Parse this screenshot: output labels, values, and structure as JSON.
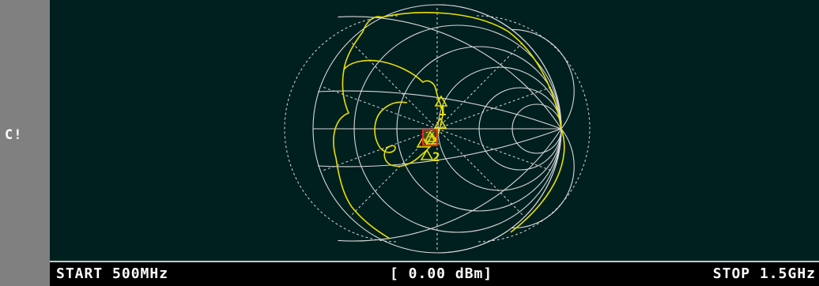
{
  "channel": {
    "label": "C!"
  },
  "status": {
    "start": "START 500MHz",
    "power": "[ 0.00 dBm]",
    "stop": "STOP 1.5GHz"
  },
  "markers": [
    {
      "label": "1"
    },
    {
      "label": "2"
    }
  ],
  "colors": {
    "background": "#001f1f",
    "grid": "#d8d8d8",
    "trace": "#e8e000",
    "marker_active": "#ff2020",
    "status_bar": "#000000"
  }
}
